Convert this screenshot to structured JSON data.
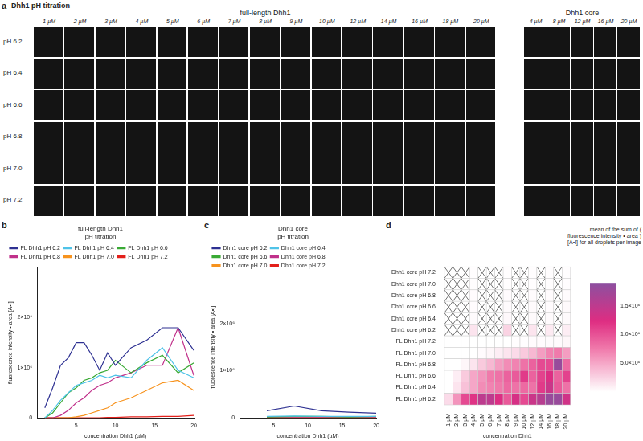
{
  "panel_a": {
    "panel_label": "a",
    "title": "Dhh1 pH titration",
    "rows": [
      "pH 6.2",
      "pH 6.4",
      "pH 6.6",
      "pH 6.8",
      "pH 7.0",
      "pH 7.2"
    ],
    "full_length": {
      "title": "full-length Dhh1",
      "columns": [
        "1 µM",
        "2 µM",
        "3 µM",
        "4 µM",
        "5 µM",
        "6 µM",
        "7 µM",
        "8 µM",
        "9 µM",
        "10 µM",
        "12 µM",
        "14 µM",
        "16 µM",
        "18 µM",
        "20 µM"
      ]
    },
    "core": {
      "title": "Dhh1 core",
      "columns": [
        "4 µM",
        "8 µM",
        "12 µM",
        "16 µM",
        "20 µM"
      ]
    }
  },
  "chart_data": [
    {
      "panel_label": "b",
      "type": "line",
      "title": [
        "full-length Dhh1",
        "pH titration"
      ],
      "x_label": "concentration Dhh1 (µM)",
      "y_label": "fluorescence intensity • area [A•I]",
      "x": [
        1,
        2,
        3,
        4,
        5,
        6,
        7,
        8,
        9,
        10,
        12,
        14,
        16,
        18,
        20
      ],
      "xlim": [
        0,
        20
      ],
      "xticks": [
        5,
        10,
        15,
        20
      ],
      "ylim": [
        0,
        3000000
      ],
      "yticks": [
        0,
        {
          "value": 1000000,
          "label": "1×10⁶"
        },
        {
          "value": 2000000,
          "label": "2×10⁶"
        }
      ],
      "grid": false,
      "legend": "upper left",
      "series": [
        {
          "name": "FL Dhh1 pH 6.2",
          "color": "#2e3192",
          "values": [
            200000,
            600000,
            1050000,
            1200000,
            1500000,
            1500000,
            1250000,
            950000,
            1300000,
            1050000,
            1400000,
            1550000,
            1800000,
            1800000,
            1350000
          ]
        },
        {
          "name": "FL Dhh1 pH 6.4",
          "color": "#4fc3e8",
          "values": [
            0,
            150000,
            350000,
            500000,
            650000,
            700000,
            750000,
            850000,
            800000,
            850000,
            800000,
            1150000,
            1400000,
            950000,
            800000
          ]
        },
        {
          "name": "FL Dhh1 pH 6.6",
          "color": "#3aaa35",
          "values": [
            0,
            100000,
            300000,
            500000,
            600000,
            750000,
            800000,
            900000,
            950000,
            1150000,
            900000,
            1100000,
            1250000,
            900000,
            1100000
          ]
        },
        {
          "name": "FL Dhh1 pH 6.8",
          "color": "#c0308a",
          "values": [
            0,
            0,
            50000,
            150000,
            300000,
            400000,
            550000,
            650000,
            700000,
            800000,
            900000,
            1050000,
            1050000,
            1800000,
            850000
          ]
        },
        {
          "name": "FL Dhh1 pH 7.0",
          "color": "#f7931e",
          "values": [
            0,
            0,
            0,
            0,
            20000,
            50000,
            100000,
            150000,
            200000,
            300000,
            400000,
            550000,
            700000,
            750000,
            550000
          ]
        },
        {
          "name": "FL Dhh1 pH 7.2",
          "color": "#e3201b",
          "values": [
            0,
            0,
            0,
            0,
            0,
            0,
            0,
            0,
            10000,
            10000,
            20000,
            20000,
            30000,
            30000,
            50000
          ]
        }
      ]
    },
    {
      "panel_label": "c",
      "type": "line",
      "title": [
        "Dhh1 core",
        "pH titration"
      ],
      "x_label": "concentration Dhh1 (µM)",
      "y_label": "fluorescence intensity • area [A•I]",
      "x": [
        4,
        8,
        12,
        16,
        20
      ],
      "xlim": [
        0,
        20
      ],
      "xticks": [
        5,
        10,
        15,
        20
      ],
      "ylim": [
        0,
        3000000
      ],
      "yticks": [
        0,
        {
          "value": 1000000,
          "label": "1×10⁶"
        },
        {
          "value": 2000000,
          "label": "2×10⁶"
        }
      ],
      "grid": false,
      "legend": "upper left",
      "series": [
        {
          "name": "Dhh1 core pH 6.2",
          "color": "#2e3192",
          "values": [
            150000,
            250000,
            150000,
            120000,
            100000
          ]
        },
        {
          "name": "Dhh1 core pH 6.4",
          "color": "#4fc3e8",
          "values": [
            30000,
            40000,
            30000,
            30000,
            30000
          ]
        },
        {
          "name": "Dhh1 core pH 6.6",
          "color": "#3aaa35",
          "values": [
            20000,
            30000,
            30000,
            20000,
            30000
          ]
        },
        {
          "name": "Dhh1 core pH 6.8",
          "color": "#c0308a",
          "values": [
            20000,
            20000,
            20000,
            20000,
            20000
          ]
        },
        {
          "name": "Dhh1 core pH 7.0",
          "color": "#f7931e",
          "values": [
            10000,
            10000,
            10000,
            10000,
            10000
          ]
        },
        {
          "name": "Dhh1 core pH 7.2",
          "color": "#e3201b",
          "values": [
            10000,
            10000,
            10000,
            10000,
            10000
          ]
        }
      ]
    },
    {
      "panel_label": "d",
      "type": "heatmap",
      "x_label": "concentration Dhh1",
      "categories": [
        "1 µM",
        "2 µM",
        "3 µM",
        "4 µM",
        "5 µM",
        "6 µM",
        "7 µM",
        "8 µM",
        "9 µM",
        "10 µM",
        "12 µM",
        "14 µM",
        "16 µM",
        "18 µM",
        "20 µM"
      ],
      "rows": [
        "Dhh1 core pH 7.2",
        "Dhh1 core pH 7.0",
        "Dhh1 core pH 6.8",
        "Dhh1 core pH 6.6",
        "Dhh1 core pH 6.4",
        "Dhh1 core pH 6.2",
        "FL Dhh1 pH 7.2",
        "FL Dhh1 pH 7.0",
        "FL Dhh1 pH 6.8",
        "FL Dhh1 pH 6.6",
        "FL Dhh1 pH 6.4",
        "FL Dhh1 pH 6.2"
      ],
      "cells": [
        [
          null,
          null,
          null,
          10000,
          null,
          null,
          null,
          10000,
          null,
          null,
          10000,
          null,
          10000,
          null,
          10000
        ],
        [
          null,
          null,
          null,
          10000,
          null,
          null,
          null,
          10000,
          null,
          null,
          10000,
          null,
          10000,
          null,
          10000
        ],
        [
          null,
          null,
          null,
          20000,
          null,
          null,
          null,
          20000,
          null,
          null,
          20000,
          null,
          20000,
          null,
          20000
        ],
        [
          null,
          null,
          null,
          20000,
          null,
          null,
          null,
          30000,
          null,
          null,
          30000,
          null,
          20000,
          null,
          30000
        ],
        [
          null,
          null,
          null,
          30000,
          null,
          null,
          null,
          40000,
          null,
          null,
          30000,
          null,
          30000,
          null,
          30000
        ],
        [
          null,
          null,
          null,
          150000,
          null,
          null,
          null,
          250000,
          null,
          null,
          150000,
          null,
          120000,
          null,
          100000
        ],
        [
          0,
          0,
          0,
          0,
          0,
          0,
          0,
          0,
          10000,
          10000,
          20000,
          20000,
          30000,
          30000,
          50000
        ],
        [
          0,
          0,
          0,
          0,
          20000,
          50000,
          100000,
          150000,
          200000,
          300000,
          400000,
          550000,
          700000,
          750000,
          550000
        ],
        [
          0,
          0,
          50000,
          150000,
          300000,
          400000,
          550000,
          650000,
          700000,
          800000,
          900000,
          1050000,
          1050000,
          1800000,
          850000
        ],
        [
          0,
          100000,
          300000,
          500000,
          600000,
          750000,
          800000,
          900000,
          950000,
          1150000,
          900000,
          1100000,
          1250000,
          900000,
          1100000
        ],
        [
          0,
          150000,
          350000,
          500000,
          650000,
          700000,
          750000,
          850000,
          800000,
          850000,
          800000,
          1150000,
          1400000,
          950000,
          800000
        ],
        [
          200000,
          600000,
          1050000,
          1200000,
          1500000,
          1500000,
          1250000,
          950000,
          1300000,
          1050000,
          1400000,
          1550000,
          1800000,
          1800000,
          1350000
        ]
      ],
      "colorbar": {
        "label": "mean of the sum of ( fluorescence intensity • area ) [A•I] for all droplets per image",
        "range": [
          0,
          1900000
        ],
        "ticks": [
          {
            "value": 500000,
            "label": "5.0×10⁵"
          },
          {
            "value": 1000000,
            "label": "1.0×10⁶"
          },
          {
            "value": 1500000,
            "label": "1.5×10⁶"
          }
        ]
      }
    }
  ]
}
